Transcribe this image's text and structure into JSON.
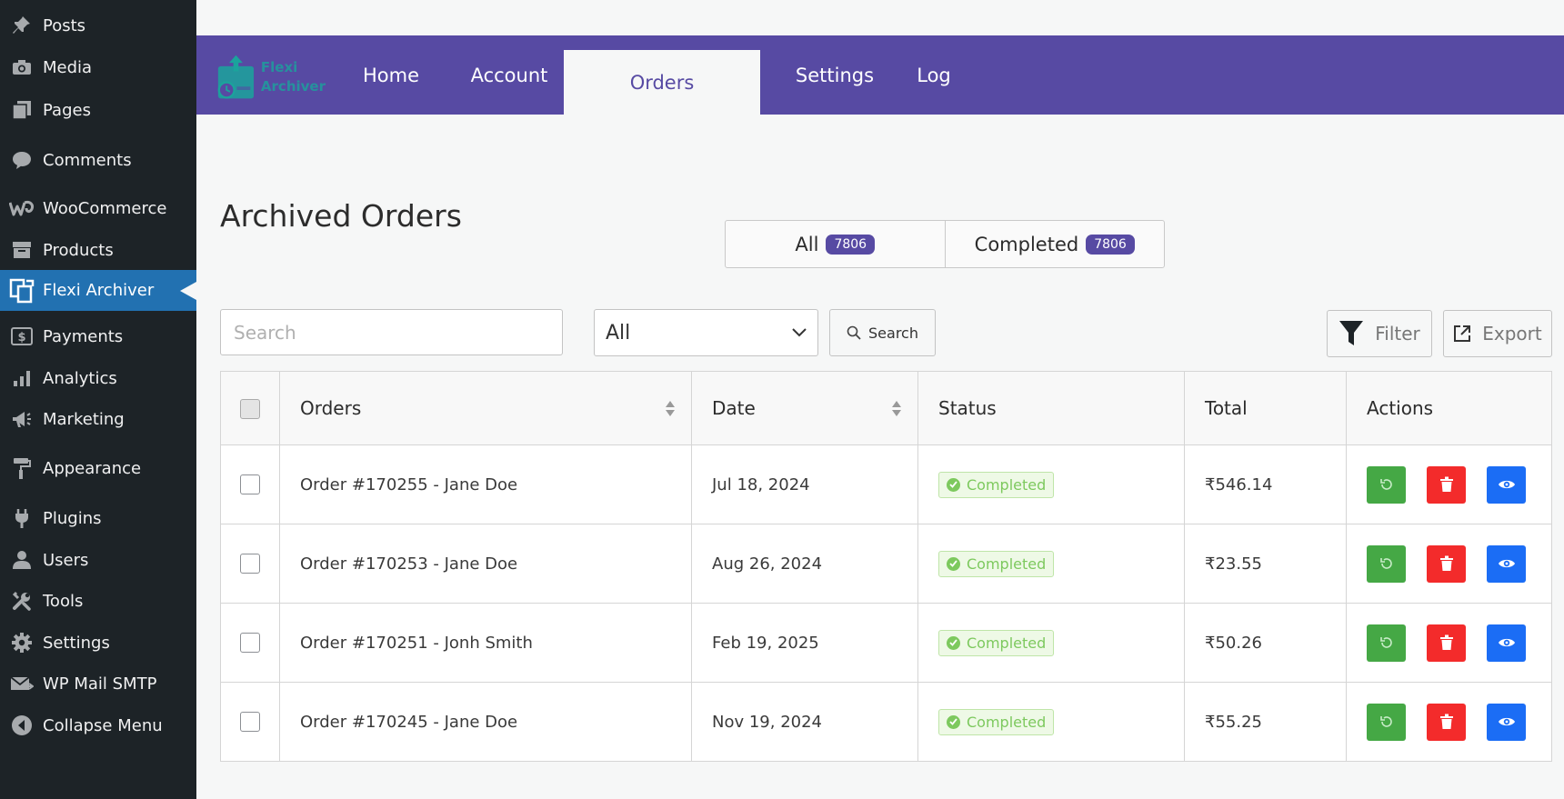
{
  "sidebar": {
    "items": [
      {
        "label": "Posts",
        "icon": "pushpin-icon"
      },
      {
        "label": "Media",
        "icon": "camera-icon"
      },
      {
        "label": "Pages",
        "icon": "pages-icon"
      },
      {
        "label": "Comments",
        "icon": "comment-icon"
      },
      {
        "label": "WooCommerce",
        "icon": "woocommerce-icon"
      },
      {
        "label": "Products",
        "icon": "archive-box-icon"
      },
      {
        "label": "Flexi Archiver",
        "icon": "flexi-archiver-icon",
        "active": true
      },
      {
        "label": "Payments",
        "icon": "dollar-icon"
      },
      {
        "label": "Analytics",
        "icon": "bar-chart-icon"
      },
      {
        "label": "Marketing",
        "icon": "megaphone-icon"
      },
      {
        "label": "Appearance",
        "icon": "paint-roller-icon"
      },
      {
        "label": "Plugins",
        "icon": "plug-icon"
      },
      {
        "label": "Users",
        "icon": "user-icon"
      },
      {
        "label": "Tools",
        "icon": "wrench-icon"
      },
      {
        "label": "Settings",
        "icon": "gear-icon"
      },
      {
        "label": "WP Mail SMTP",
        "icon": "mail-icon"
      },
      {
        "label": "Collapse Menu",
        "icon": "collapse-icon"
      }
    ]
  },
  "topnav": {
    "logo_line1": "Flexi",
    "logo_line2": "Archiver",
    "tabs": [
      {
        "label": "Home"
      },
      {
        "label": "Account"
      },
      {
        "label": "Orders",
        "active": true
      },
      {
        "label": "Settings"
      },
      {
        "label": "Log"
      }
    ]
  },
  "main": {
    "title": "Archived Orders",
    "status_tabs": [
      {
        "label": "All",
        "count": "7806"
      },
      {
        "label": "Completed",
        "count": "7806"
      }
    ],
    "search_placeholder": "Search",
    "status_filter_value": "All",
    "search_button": "Search",
    "filter_button": "Filter",
    "export_button": "Export"
  },
  "table": {
    "columns": [
      "Orders",
      "Date",
      "Status",
      "Total",
      "Actions"
    ],
    "rows": [
      {
        "order": "Order #170255 - Jane Doe",
        "date": "Jul  18, 2024",
        "status": "Completed",
        "total": "₹546.14"
      },
      {
        "order": "Order #170253 - Jane Doe",
        "date": "Aug 26, 2024",
        "status": "Completed",
        "total": "₹23.55"
      },
      {
        "order": "Order #170251 - Jonh Smith",
        "date": "Feb 19, 2025",
        "status": "Completed",
        "total": "₹50.26"
      },
      {
        "order": "Order #170245 - Jane Doe",
        "date": "Nov 19, 2024",
        "status": "Completed",
        "total": "₹55.25"
      }
    ]
  },
  "colors": {
    "sidebar_bg": "#1d2327",
    "sidebar_active": "#2271b1",
    "nav_purple": "#574aa3",
    "status_green": "#7dc95e",
    "restore_green": "#45a845",
    "delete_red": "#f32b2b",
    "view_blue": "#1b6df5"
  }
}
